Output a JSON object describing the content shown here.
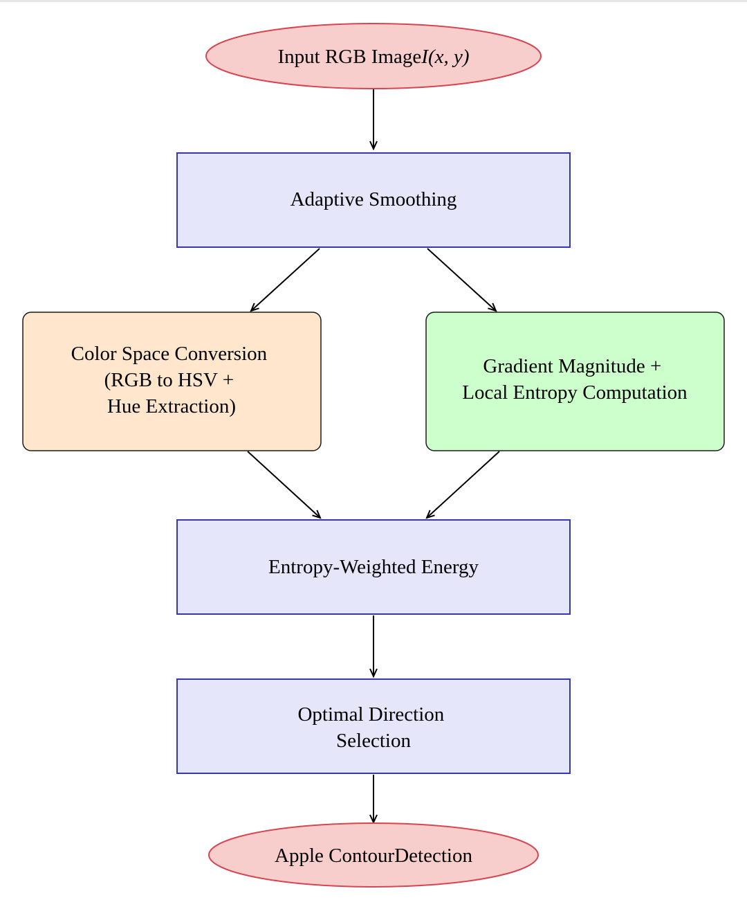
{
  "diagram": {
    "type": "flowchart",
    "nodes": {
      "input": {
        "label": "Input RGB Image",
        "math": "I(x, y)",
        "fill": "#f8cecc",
        "stroke": "#d64550"
      },
      "smoothing": {
        "label": "Adaptive Smoothing",
        "fill": "#e6e6fa",
        "stroke": "#3636b0"
      },
      "color_space": {
        "lines": [
          "Color Space Conversion",
          "(RGB to HSV +",
          "Hue Extraction)"
        ],
        "fill": "#ffe6cc",
        "stroke": "#1a1a1a"
      },
      "gradient": {
        "lines": [
          "Gradient Magnitude +",
          "Local Entropy Computation"
        ],
        "fill": "#ccffcc",
        "stroke": "#1a1a1a"
      },
      "energy": {
        "label": "Entropy-Weighted Energy",
        "fill": "#e6e6fa",
        "stroke": "#3636b0"
      },
      "direction": {
        "lines": [
          "Optimal Direction",
          "Selection"
        ],
        "fill": "#e6e6fa",
        "stroke": "#3636b0"
      },
      "output": {
        "label": "Apple ContourDetection",
        "fill": "#f8cecc",
        "stroke": "#d64550"
      }
    },
    "edges": [
      {
        "from": "input",
        "to": "smoothing"
      },
      {
        "from": "smoothing",
        "to": "color_space"
      },
      {
        "from": "smoothing",
        "to": "gradient"
      },
      {
        "from": "color_space",
        "to": "energy"
      },
      {
        "from": "gradient",
        "to": "energy"
      },
      {
        "from": "energy",
        "to": "direction"
      },
      {
        "from": "direction",
        "to": "output"
      }
    ]
  }
}
